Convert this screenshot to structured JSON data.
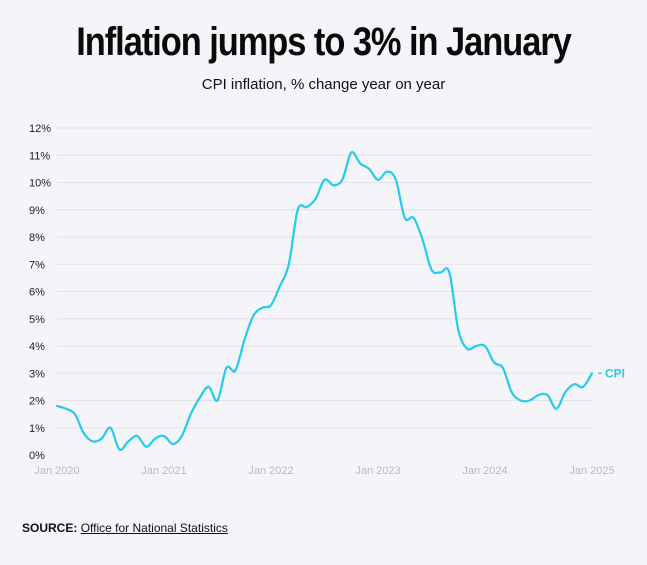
{
  "header": {
    "title": "Inflation jumps to 3% in January",
    "subtitle": "CPI inflation, % change year on year"
  },
  "footer": {
    "source_label": "SOURCE:",
    "source_link": "Office for National Statistics"
  },
  "colors": {
    "series": "#22ccee",
    "background": "#f5f4f8"
  },
  "chart_data": {
    "type": "line",
    "title": "Inflation jumps to 3% in January",
    "subtitle": "CPI inflation, % change year on year",
    "xlabel": "",
    "ylabel": "",
    "ylim": [
      0,
      12
    ],
    "y_ticks": [
      "0%",
      "1%",
      "2%",
      "3%",
      "4%",
      "5%",
      "6%",
      "7%",
      "8%",
      "9%",
      "10%",
      "11%",
      "12%"
    ],
    "x_ticks": [
      "Jan 2020",
      "Jan 2021",
      "Jan 2022",
      "Jan 2023",
      "Jan 2024",
      "Jan 2025"
    ],
    "grid": true,
    "series": [
      {
        "name": "CPI",
        "start": "Jan 2020",
        "values": [
          1.8,
          1.7,
          1.5,
          0.8,
          0.5,
          0.6,
          1.0,
          0.2,
          0.5,
          0.7,
          0.3,
          0.6,
          0.7,
          0.4,
          0.7,
          1.5,
          2.1,
          2.5,
          2.0,
          3.2,
          3.1,
          4.2,
          5.1,
          5.4,
          5.5,
          6.2,
          7.0,
          9.0,
          9.1,
          9.4,
          10.1,
          9.9,
          10.1,
          11.1,
          10.7,
          10.5,
          10.1,
          10.4,
          10.1,
          8.7,
          8.7,
          7.9,
          6.8,
          6.7,
          6.7,
          4.6,
          3.9,
          4.0,
          4.0,
          3.4,
          3.2,
          2.3,
          2.0,
          2.0,
          2.2,
          2.2,
          1.7,
          2.3,
          2.6,
          2.5,
          3.0
        ]
      }
    ]
  }
}
